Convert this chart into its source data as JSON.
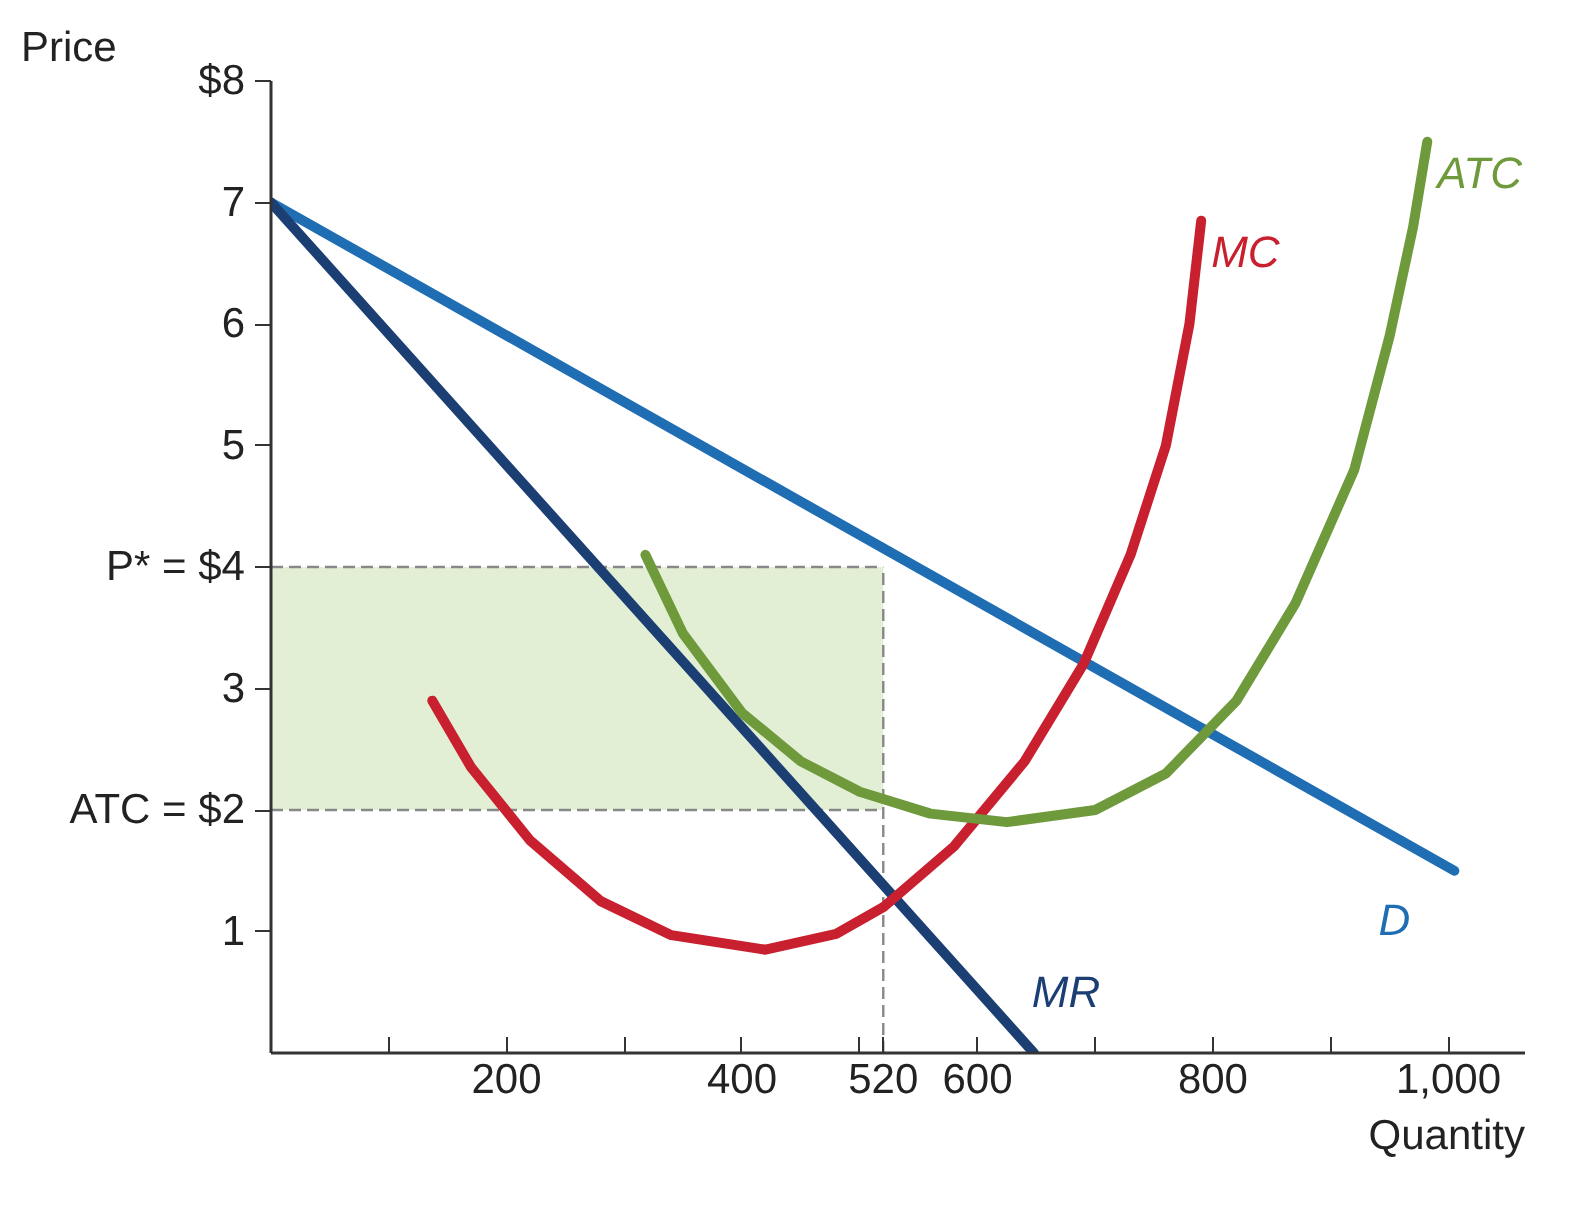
{
  "chart_data": {
    "type": "line",
    "ylabel": "Price",
    "xlabel": "Quantity",
    "xlim": [
      0,
      1065
    ],
    "ylim": [
      0,
      8
    ],
    "xticks": [
      {
        "value": 100,
        "label": null
      },
      200,
      {
        "value": 300,
        "label": null
      },
      400,
      {
        "value": 500,
        "label": null
      },
      520,
      600,
      {
        "value": 700,
        "label": null
      },
      800,
      {
        "value": 900,
        "label": null
      },
      {
        "value": 1000,
        "label": "1,000"
      }
    ],
    "yticks": [
      1,
      {
        "value": 2,
        "label": "ATC = $2"
      },
      3,
      {
        "value": 4,
        "label": "P* = $4"
      },
      5,
      6,
      7,
      {
        "value": 8,
        "label": "$8"
      }
    ],
    "grid": false,
    "bands": [
      {
        "axis": "y",
        "from": 2,
        "to": 4,
        "color": "#e2efd5"
      }
    ],
    "ref_lines": [
      {
        "axis": "x",
        "value": 520,
        "color": "#888888",
        "line_style": "dashed"
      },
      {
        "axis": "y",
        "value": 4,
        "color": "#888888",
        "line_style": "dashed"
      },
      {
        "axis": "y",
        "value": 2,
        "color": "#888888",
        "line_style": "dashed"
      }
    ],
    "series": [
      {
        "name": "D",
        "color": "#1f6db3",
        "x": [
          0,
          1005
        ],
        "values": [
          7,
          1.5
        ]
      },
      {
        "name": "MR",
        "color": "#1c3f73",
        "x": [
          0,
          648
        ],
        "values": [
          7,
          0
        ]
      },
      {
        "name": "MC",
        "color": "#c8202e",
        "x": [
          137,
          170,
          220,
          280,
          340,
          420,
          480,
          520,
          580,
          640,
          690,
          730,
          760,
          780,
          790
        ],
        "values": [
          2.9,
          2.35,
          1.75,
          1.25,
          0.97,
          0.85,
          0.98,
          1.2,
          1.7,
          2.4,
          3.2,
          4.1,
          5.0,
          6.0,
          6.85
        ]
      },
      {
        "name": "ATC",
        "color": "#6e9a3c",
        "x": [
          318,
          350,
          400,
          450,
          500,
          560,
          625,
          700,
          760,
          820,
          870,
          920,
          950,
          970,
          982
        ],
        "values": [
          4.1,
          3.45,
          2.8,
          2.4,
          2.15,
          1.97,
          1.9,
          2.0,
          2.3,
          2.9,
          3.7,
          4.8,
          5.9,
          6.8,
          7.5
        ]
      }
    ]
  }
}
